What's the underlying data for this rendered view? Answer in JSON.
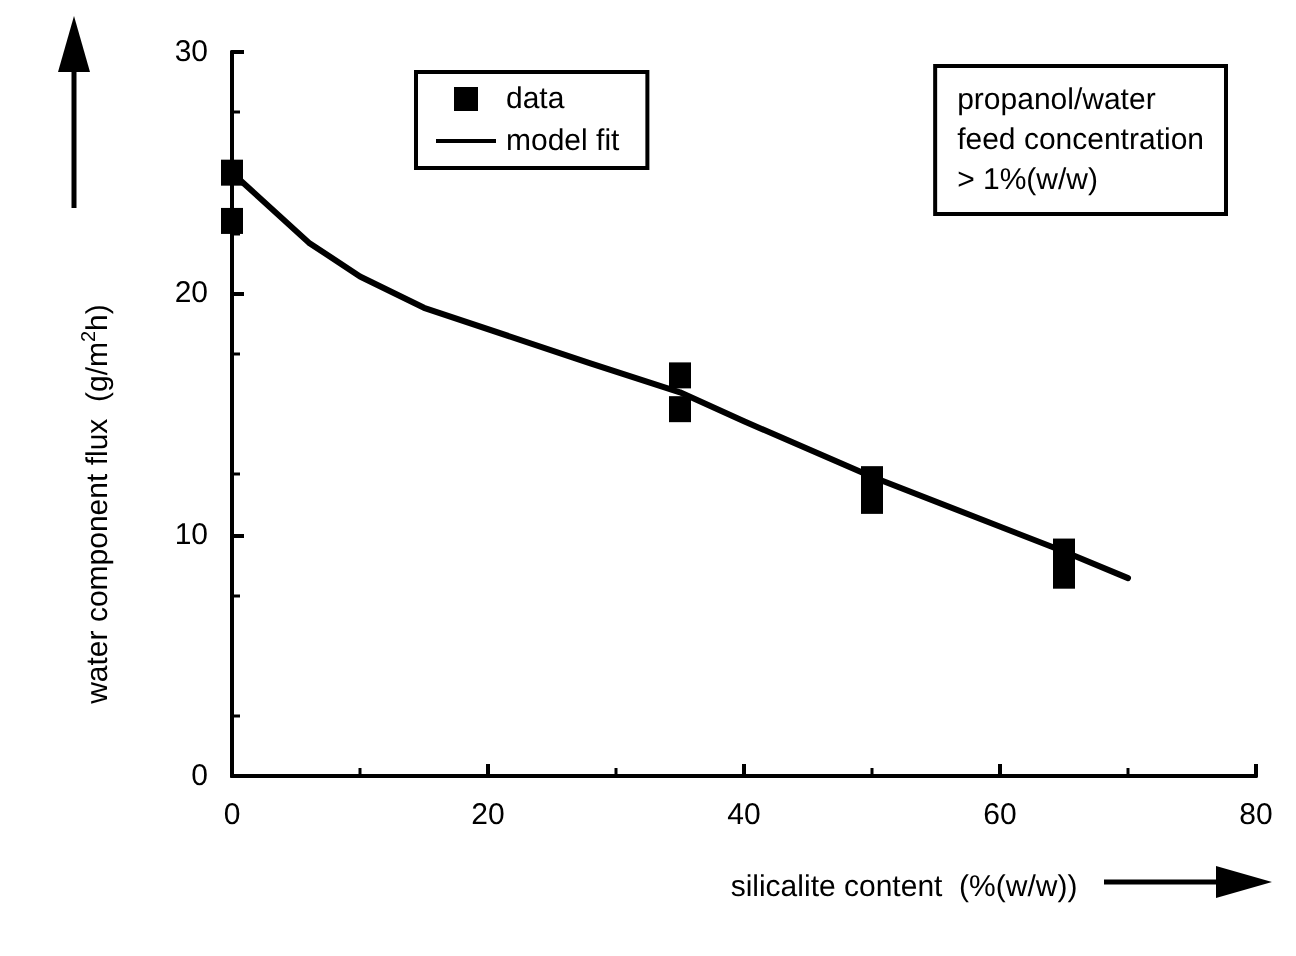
{
  "chart_data": {
    "type": "scatter",
    "xlabel": "silicalite content  (%(w/w))",
    "ylabel": "water component flux  (g/m$^{2}$h)",
    "xlim": [
      0,
      80
    ],
    "xticks": [
      0,
      20,
      40,
      60,
      80
    ],
    "ylim": [
      0,
      30
    ],
    "yticks": [
      0,
      10,
      20,
      30
    ],
    "grid": false,
    "legend": "top left",
    "series": [
      {
        "name": "data",
        "marker": "square",
        "color": "#000000",
        "x": [
          0,
          0,
          35,
          35,
          50,
          50,
          65,
          65
        ],
        "values": [
          25,
          23,
          16.6,
          15.2,
          12.3,
          11.4,
          9.3,
          8.3
        ]
      },
      {
        "name": "model fit",
        "type": "line",
        "color": "#000000",
        "line_style": "solid",
        "x": [
          0,
          6,
          10,
          15,
          28,
          35,
          40,
          50,
          65,
          70
        ],
        "values": [
          25,
          22.1,
          20.7,
          19.4,
          17.1,
          15.9,
          14.7,
          12.4,
          9.3,
          8.2
        ]
      }
    ],
    "annotations": [
      "propanol/water\nfeed concentration\n> 1%(w/w)"
    ]
  }
}
